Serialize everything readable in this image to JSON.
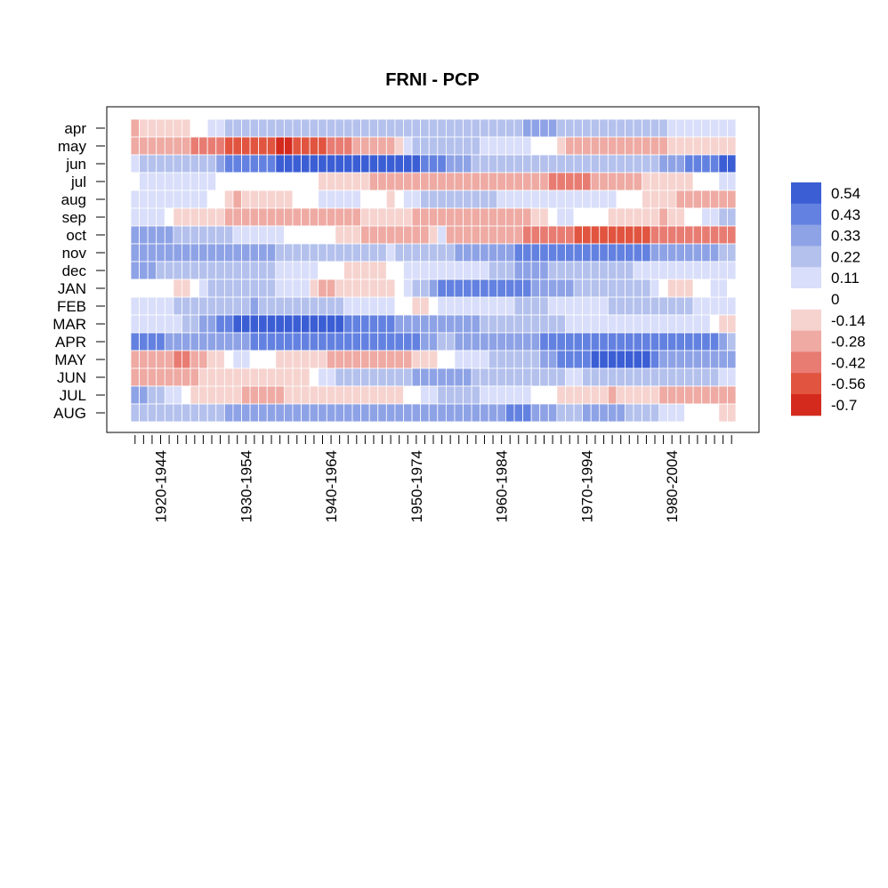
{
  "chart_data": {
    "type": "heatmap",
    "title": "FRNI - PCP",
    "rows": [
      "apr",
      "may",
      "jun",
      "jul",
      "aug",
      "sep",
      "oct",
      "nov",
      "dec",
      "JAN",
      "FEB",
      "MAR",
      "APR",
      "MAY",
      "JUN",
      "JUL",
      "AUG"
    ],
    "n_windows": 71,
    "x_tick_labels": [
      {
        "label": "1920-1944",
        "window": 3
      },
      {
        "label": "1930-1954",
        "window": 13
      },
      {
        "label": "1940-1964",
        "window": 23
      },
      {
        "label": "1950-1974",
        "window": 33
      },
      {
        "label": "1960-1984",
        "window": 43
      },
      {
        "label": "1970-1994",
        "window": 53
      },
      {
        "label": "1980-2004",
        "window": 63
      }
    ],
    "legend": {
      "breaks": [
        "0.54",
        "0.43",
        "0.33",
        "0.22",
        "0.11",
        "0",
        "-0.14",
        "-0.28",
        "-0.42",
        "-0.56",
        "-0.7"
      ],
      "colors": [
        "#3b5ed5",
        "#6381e0",
        "#8ea2e6",
        "#b4c1ed",
        "#d9defa",
        "#ffffff",
        "#f6d3cf",
        "#eeaaa3",
        "#e87c72",
        "#e1543f",
        "#d42a1e"
      ]
    },
    "row_profiles": {
      "apr": [
        [
          0,
          -0.15
        ],
        [
          6,
          -0.05
        ],
        [
          10,
          0.08
        ],
        [
          12,
          0.18
        ],
        [
          30,
          0.15
        ],
        [
          40,
          0.12
        ],
        [
          45,
          0.2
        ],
        [
          48,
          0.3
        ],
        [
          50,
          0.2
        ],
        [
          58,
          0.15
        ],
        [
          70,
          0.05
        ]
      ],
      "may": [
        [
          0,
          -0.2
        ],
        [
          6,
          -0.25
        ],
        [
          8,
          -0.38
        ],
        [
          12,
          -0.45
        ],
        [
          18,
          -0.6
        ],
        [
          20,
          -0.5
        ],
        [
          25,
          -0.3
        ],
        [
          30,
          -0.15
        ],
        [
          33,
          0.15
        ],
        [
          36,
          0.2
        ],
        [
          44,
          0.05
        ],
        [
          48,
          0.02
        ],
        [
          52,
          -0.22
        ],
        [
          58,
          -0.25
        ],
        [
          62,
          -0.15
        ],
        [
          66,
          -0.05
        ],
        [
          70,
          -0.08
        ]
      ],
      "jun": [
        [
          0,
          0.1
        ],
        [
          4,
          0.18
        ],
        [
          8,
          0.12
        ],
        [
          11,
          0.4
        ],
        [
          20,
          0.45
        ],
        [
          33,
          0.45
        ],
        [
          36,
          0.35
        ],
        [
          40,
          0.2
        ],
        [
          50,
          0.15
        ],
        [
          56,
          0.2
        ],
        [
          60,
          0.15
        ],
        [
          66,
          0.4
        ],
        [
          70,
          0.45
        ]
      ],
      "jul": [
        [
          0,
          0.02
        ],
        [
          4,
          0.1
        ],
        [
          10,
          0.02
        ],
        [
          24,
          -0.05
        ],
        [
          30,
          -0.22
        ],
        [
          40,
          -0.2
        ],
        [
          48,
          -0.25
        ],
        [
          51,
          -0.4
        ],
        [
          54,
          -0.25
        ],
        [
          62,
          -0.1
        ],
        [
          70,
          0.05
        ]
      ],
      "aug": [
        [
          0,
          0.08
        ],
        [
          10,
          0.02
        ],
        [
          12,
          -0.14
        ],
        [
          16,
          -0.1
        ],
        [
          24,
          0.1
        ],
        [
          30,
          -0.05
        ],
        [
          36,
          0.2
        ],
        [
          46,
          0.05
        ],
        [
          56,
          0.05
        ],
        [
          62,
          -0.12
        ],
        [
          70,
          -0.2
        ]
      ],
      "sep": [
        [
          0,
          0.08
        ],
        [
          3,
          0.05
        ],
        [
          6,
          -0.1
        ],
        [
          10,
          -0.05
        ],
        [
          12,
          -0.25
        ],
        [
          20,
          -0.22
        ],
        [
          30,
          -0.1
        ],
        [
          36,
          -0.2
        ],
        [
          46,
          -0.2
        ],
        [
          50,
          0.05
        ],
        [
          62,
          -0.15
        ],
        [
          68,
          0.1
        ],
        [
          70,
          0.15
        ]
      ],
      "oct": [
        [
          0,
          0.3
        ],
        [
          6,
          0.2
        ],
        [
          12,
          0.1
        ],
        [
          24,
          -0.05
        ],
        [
          28,
          -0.22
        ],
        [
          34,
          -0.2
        ],
        [
          36,
          0.05
        ],
        [
          37,
          -0.2
        ],
        [
          48,
          -0.3
        ],
        [
          52,
          -0.45
        ],
        [
          60,
          -0.45
        ],
        [
          62,
          -0.3
        ],
        [
          70,
          -0.3
        ]
      ],
      "nov": [
        [
          0,
          0.3
        ],
        [
          8,
          0.28
        ],
        [
          12,
          0.25
        ],
        [
          20,
          0.2
        ],
        [
          30,
          0.1
        ],
        [
          36,
          0.2
        ],
        [
          46,
          0.35
        ],
        [
          56,
          0.4
        ],
        [
          62,
          0.3
        ],
        [
          70,
          0.2
        ]
      ],
      "dec": [
        [
          0,
          0.28
        ],
        [
          6,
          0.15
        ],
        [
          12,
          0.18
        ],
        [
          20,
          0.05
        ],
        [
          28,
          -0.1
        ],
        [
          34,
          0.1
        ],
        [
          40,
          0.05
        ],
        [
          46,
          0.3
        ],
        [
          50,
          0.15
        ],
        [
          60,
          0.1
        ],
        [
          70,
          0.08
        ]
      ],
      "JAN": [
        [
          0,
          0.02
        ],
        [
          6,
          -0.06
        ],
        [
          10,
          0.2
        ],
        [
          20,
          0.05
        ],
        [
          22,
          -0.15
        ],
        [
          30,
          -0.1
        ],
        [
          33,
          0.15
        ],
        [
          36,
          0.35
        ],
        [
          44,
          0.4
        ],
        [
          52,
          0.2
        ],
        [
          60,
          0.12
        ],
        [
          64,
          -0.1
        ],
        [
          68,
          0.05
        ],
        [
          70,
          0.02
        ]
      ],
      "FEB": [
        [
          0,
          0.05
        ],
        [
          8,
          0.15
        ],
        [
          14,
          0.22
        ],
        [
          24,
          0.12
        ],
        [
          30,
          0.05
        ],
        [
          34,
          -0.1
        ],
        [
          36,
          0.05
        ],
        [
          46,
          0.12
        ],
        [
          54,
          0.08
        ],
        [
          60,
          0.2
        ],
        [
          66,
          0.1
        ],
        [
          70,
          0.05
        ]
      ],
      "MAR": [
        [
          0,
          0.05
        ],
        [
          6,
          0.12
        ],
        [
          10,
          0.33
        ],
        [
          12,
          0.5
        ],
        [
          20,
          0.5
        ],
        [
          28,
          0.38
        ],
        [
          32,
          0.28
        ],
        [
          40,
          0.22
        ],
        [
          48,
          0.18
        ],
        [
          52,
          0.05
        ],
        [
          60,
          0.05
        ],
        [
          66,
          0.08
        ],
        [
          70,
          -0.1
        ]
      ],
      "APR": [
        [
          0,
          0.35
        ],
        [
          10,
          0.3
        ],
        [
          20,
          0.38
        ],
        [
          32,
          0.38
        ],
        [
          36,
          0.2
        ],
        [
          44,
          0.3
        ],
        [
          50,
          0.35
        ],
        [
          56,
          0.42
        ],
        [
          64,
          0.42
        ],
        [
          68,
          0.35
        ],
        [
          70,
          0.2
        ]
      ],
      "MAY": [
        [
          0,
          -0.2
        ],
        [
          6,
          -0.3
        ],
        [
          8,
          -0.15
        ],
        [
          12,
          0.05
        ],
        [
          20,
          -0.1
        ],
        [
          30,
          -0.25
        ],
        [
          34,
          -0.1
        ],
        [
          40,
          0.1
        ],
        [
          46,
          0.15
        ],
        [
          50,
          0.35
        ],
        [
          56,
          0.5
        ],
        [
          60,
          0.52
        ],
        [
          62,
          0.3
        ],
        [
          70,
          0.3
        ]
      ],
      "JUN": [
        [
          0,
          -0.2
        ],
        [
          6,
          -0.15
        ],
        [
          12,
          -0.1
        ],
        [
          20,
          -0.05
        ],
        [
          24,
          0.15
        ],
        [
          36,
          0.25
        ],
        [
          46,
          0.15
        ],
        [
          52,
          0.1
        ],
        [
          58,
          0.2
        ],
        [
          70,
          0.1
        ]
      ],
      "JUL": [
        [
          0,
          0.3
        ],
        [
          4,
          0.08
        ],
        [
          8,
          -0.1
        ],
        [
          14,
          -0.15
        ],
        [
          24,
          -0.12
        ],
        [
          30,
          -0.1
        ],
        [
          36,
          0.15
        ],
        [
          44,
          0.08
        ],
        [
          50,
          -0.05
        ],
        [
          56,
          -0.15
        ],
        [
          60,
          -0.1
        ],
        [
          64,
          -0.2
        ],
        [
          70,
          -0.22
        ]
      ],
      "AUG": [
        [
          0,
          0.12
        ],
        [
          4,
          0.2
        ],
        [
          20,
          0.25
        ],
        [
          32,
          0.25
        ],
        [
          40,
          0.3
        ],
        [
          46,
          0.35
        ],
        [
          50,
          0.2
        ],
        [
          56,
          0.25
        ],
        [
          60,
          0.15
        ],
        [
          64,
          0.05
        ],
        [
          70,
          -0.08
        ]
      ]
    }
  }
}
